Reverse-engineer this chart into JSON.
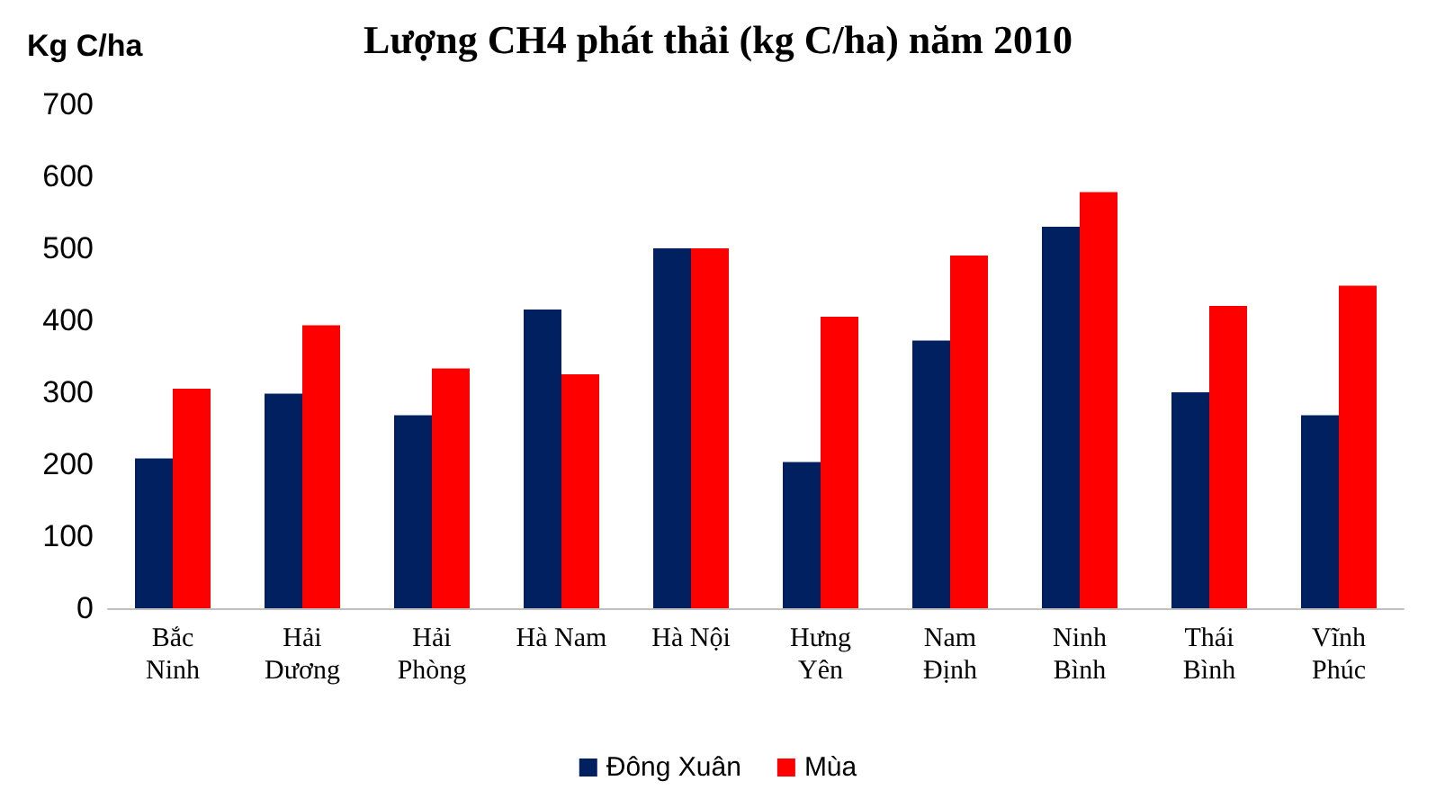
{
  "chart_data": {
    "type": "bar",
    "title": "Lượng CH4 phát thải (kg C/ha) năm 2010",
    "ylabel": "Kg C/ha",
    "categories": [
      "Bắc\nNinh",
      "Hải\nDương",
      "Hải\nPhòng",
      "Hà Nam",
      "Hà Nội",
      "Hưng\nYên",
      "Nam\nĐịnh",
      "Ninh\nBình",
      "Thái\nBình",
      "Vĩnh\nPhúc"
    ],
    "series": [
      {
        "name": "Đông Xuân",
        "color": "#002060",
        "values": [
          208,
          298,
          268,
          415,
          500,
          203,
          372,
          530,
          300,
          268
        ]
      },
      {
        "name": "Mùa",
        "color": "#ff0000",
        "values": [
          305,
          393,
          333,
          325,
          500,
          405,
          490,
          578,
          420,
          448
        ]
      }
    ],
    "ylim": [
      0,
      700
    ],
    "yticks": [
      0,
      100,
      200,
      300,
      400,
      500,
      600,
      700
    ],
    "grid": false,
    "legend": "bottom"
  }
}
